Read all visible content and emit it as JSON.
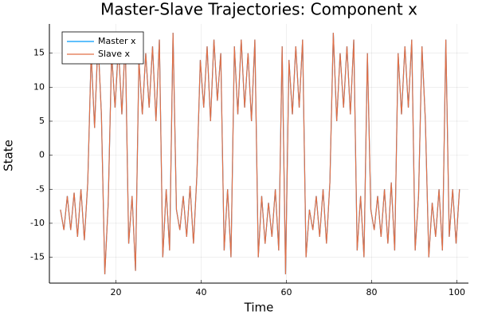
{
  "chart_data": {
    "type": "line",
    "title": "Master-Slave Trajectories: Component x",
    "x_label": "Time",
    "y_label": "State",
    "x": [
      7.0,
      7.8,
      8.6,
      9.4,
      10.2,
      11.0,
      11.8,
      12.6,
      13.4,
      14.2,
      15.0,
      15.8,
      16.6,
      17.4,
      18.2,
      19.0,
      19.8,
      20.6,
      21.4,
      22.2,
      23.0,
      23.8,
      24.6,
      25.4,
      26.2,
      27.0,
      27.8,
      28.6,
      29.4,
      30.2,
      31.0,
      31.8,
      32.6,
      33.4,
      34.2,
      35.0,
      35.8,
      36.6,
      37.4,
      38.2,
      39.0,
      39.8,
      40.6,
      41.4,
      42.2,
      43.0,
      43.8,
      44.6,
      45.4,
      46.2,
      47.0,
      47.8,
      48.6,
      49.4,
      50.2,
      51.0,
      51.8,
      52.6,
      53.4,
      54.2,
      55.0,
      55.8,
      56.6,
      57.4,
      58.2,
      59.0,
      59.8,
      60.6,
      61.4,
      62.2,
      63.0,
      63.8,
      64.6,
      65.4,
      66.2,
      67.0,
      67.8,
      68.6,
      69.4,
      70.2,
      71.0,
      71.8,
      72.6,
      73.4,
      74.2,
      75.0,
      75.8,
      76.6,
      77.4,
      78.2,
      79.0,
      79.8,
      80.6,
      81.4,
      82.2,
      83.0,
      83.8,
      84.6,
      85.4,
      86.2,
      87.0,
      87.8,
      88.6,
      89.4,
      90.2,
      91.0,
      91.8,
      92.6,
      93.4,
      94.2,
      95.0,
      95.8,
      96.6,
      97.4,
      98.2,
      99.0,
      99.8,
      100.6
    ],
    "series": [
      {
        "name": "Master x",
        "color": "#009af9",
        "values": [
          -8,
          -11,
          -6,
          -11,
          -5.5,
          -12,
          -5,
          -12.5,
          -4,
          15,
          4,
          17,
          6,
          -17.5,
          -7,
          15,
          7,
          16,
          6,
          17,
          -13,
          -6,
          -17,
          14,
          6,
          15,
          7,
          16,
          5,
          17,
          -15,
          -5,
          -14,
          18,
          -8,
          -11,
          -6,
          -12,
          -4.5,
          -13,
          -3,
          14,
          7,
          16,
          5,
          17,
          8,
          15,
          -14,
          -5,
          -15,
          16,
          6,
          17,
          7,
          15,
          5,
          17,
          -15,
          -6,
          -13,
          -7,
          -12,
          -5,
          -14,
          16,
          -17.5,
          14,
          6,
          16,
          7,
          17,
          -15,
          -8,
          -11,
          -6,
          -12,
          -5,
          -13,
          -4,
          18,
          5,
          15,
          7,
          16,
          6,
          17,
          -14,
          -6,
          -15,
          15,
          -8,
          -11,
          -6,
          -12,
          -5,
          -13,
          -4,
          -14,
          15,
          6,
          16,
          7,
          17,
          -14,
          -6,
          16,
          5,
          -15,
          -7,
          -12,
          -5,
          -14,
          17,
          -12,
          -5,
          -13,
          -5
        ]
      },
      {
        "name": "Slave x",
        "color": "#e26f46",
        "values": [
          -8,
          -11,
          -6,
          -11,
          -5.5,
          -12,
          -5,
          -12.5,
          -4,
          15,
          4,
          17,
          6,
          -17.5,
          -7,
          15,
          7,
          16,
          6,
          17,
          -13,
          -6,
          -17,
          14,
          6,
          15,
          7,
          16,
          5,
          17,
          -15,
          -5,
          -14,
          18,
          -8,
          -11,
          -6,
          -12,
          -4.5,
          -13,
          -3,
          14,
          7,
          16,
          5,
          17,
          8,
          15,
          -14,
          -5,
          -15,
          16,
          6,
          17,
          7,
          15,
          5,
          17,
          -15,
          -6,
          -13,
          -7,
          -12,
          -5,
          -14,
          16,
          -17.5,
          14,
          6,
          16,
          7,
          17,
          -15,
          -8,
          -11,
          -6,
          -12,
          -5,
          -13,
          -4,
          18,
          5,
          15,
          7,
          16,
          6,
          17,
          -14,
          -6,
          -15,
          15,
          -8,
          -11,
          -6,
          -12,
          -5,
          -13,
          -4,
          -14,
          15,
          6,
          16,
          7,
          17,
          -14,
          -6,
          16,
          5,
          -15,
          -7,
          -12,
          -5,
          -14,
          17,
          -12,
          -5,
          -13,
          -5
        ]
      }
    ],
    "xlim": [
      4.4,
      102.7
    ],
    "xticks": [
      20,
      40,
      60,
      80,
      100
    ],
    "ylim": [
      -18.8,
      19.3
    ],
    "yticks": [
      -15,
      -10,
      -5,
      0,
      5,
      10,
      15
    ],
    "grid": true,
    "legend": "top-left"
  }
}
